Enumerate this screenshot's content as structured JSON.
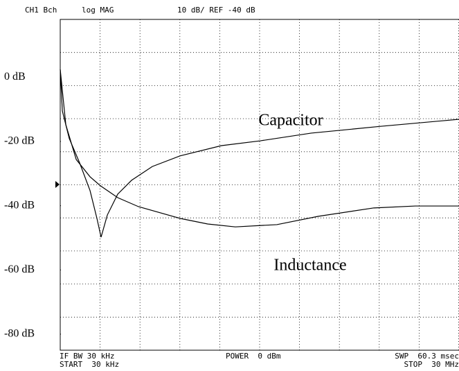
{
  "chart_data": {
    "type": "line",
    "header": {
      "channel": "CH1 Bch",
      "format": "log MAG",
      "scale": "10 dB/ REF -40 dB"
    },
    "footer": {
      "ifbw": "IF BW 30 kHz",
      "start": "START  30 kHz",
      "power": "POWER  0 dBm",
      "sweep": "SWP  60.3 msec",
      "stop": "STOP  30 MHz"
    },
    "xlim": [
      0.03,
      30
    ],
    "ylim": [
      -85,
      18
    ],
    "yticks": [
      {
        "value": 0,
        "label": "0 dB"
      },
      {
        "value": -20,
        "label": "-20 dB"
      },
      {
        "value": -40,
        "label": "-40 dB"
      },
      {
        "value": -60,
        "label": "-60 dB"
      },
      {
        "value": -80,
        "label": "-80 dB"
      }
    ],
    "grid": true,
    "series": [
      {
        "name": "Capacitor",
        "color": "#000000",
        "x": [
          0.03,
          0.19,
          0.71,
          1.49,
          2.27,
          2.79,
          3.1,
          3.57,
          4.35,
          5.39,
          6.95,
          9.03,
          12.15,
          15.07,
          18.9,
          24.1,
          30
        ],
        "values": [
          2.4,
          -10.5,
          -19.1,
          -26.7,
          -35.3,
          -44,
          -49.8,
          -42.9,
          -36.4,
          -32.1,
          -27.8,
          -24.5,
          -21.3,
          -19.8,
          -17.4,
          -15.3,
          -13.1
        ]
      },
      {
        "name": "Inductance",
        "color": "#000000",
        "x": [
          0.03,
          0.45,
          1.23,
          2.27,
          3.05,
          4.35,
          5.91,
          9.08,
          11.11,
          13.19,
          16.31,
          19.44,
          23.6,
          26.72,
          30
        ],
        "values": [
          2.4,
          -14.8,
          -25.6,
          -31,
          -33.8,
          -37.5,
          -40.3,
          -44,
          -45.7,
          -46.6,
          -45.9,
          -43.3,
          -40.7,
          -40.1,
          -40.1
        ]
      }
    ]
  }
}
